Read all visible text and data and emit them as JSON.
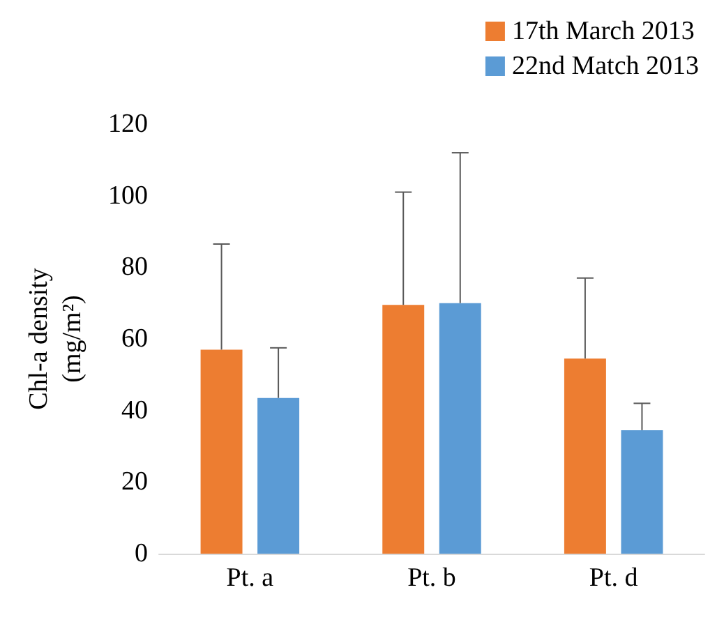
{
  "chart_data": {
    "type": "bar",
    "ylabel": "Chl-a density\n(mg/m²)",
    "categories": [
      "Pt. a",
      "Pt. b",
      "Pt. d"
    ],
    "series": [
      {
        "name": "17th March 2013",
        "color": "#ed7d31",
        "values": [
          57,
          69.5,
          54.5
        ],
        "errors": [
          [
            57,
            86.5
          ],
          [
            69.5,
            101
          ],
          [
            54.5,
            77
          ]
        ]
      },
      {
        "name": "22nd Match 2013",
        "color": "#5b9bd5",
        "values": [
          43.5,
          70,
          34.5
        ],
        "errors": [
          [
            43.5,
            57.5
          ],
          [
            70,
            112
          ],
          [
            34.5,
            42
          ]
        ]
      }
    ],
    "ylim": [
      0,
      120
    ],
    "yticks": [
      0,
      20,
      40,
      60,
      80,
      100,
      120
    ],
    "grid": false,
    "legend": "top right"
  }
}
